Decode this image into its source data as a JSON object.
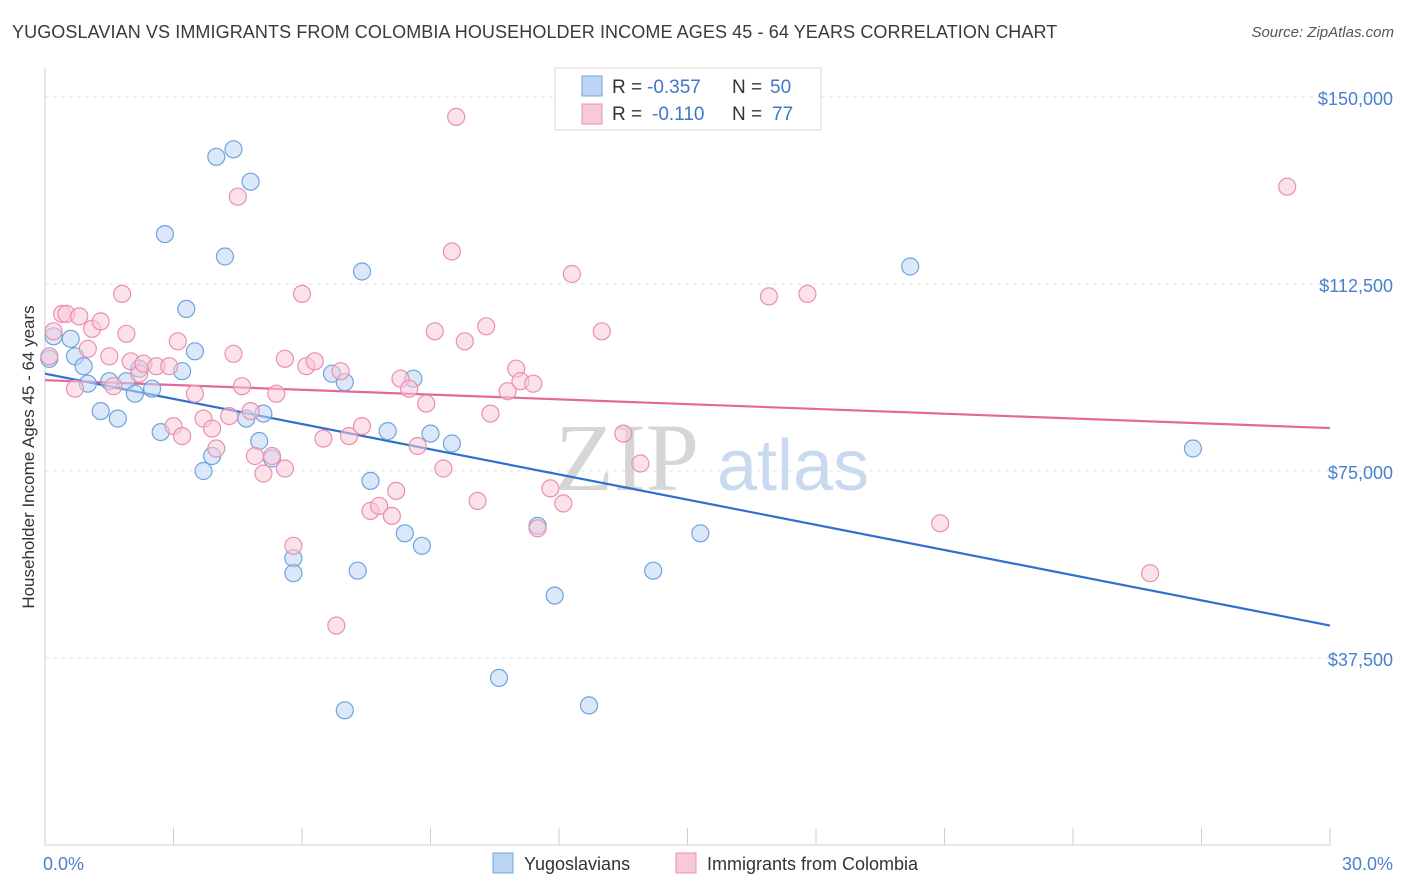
{
  "header": {
    "title": "YUGOSLAVIAN VS IMMIGRANTS FROM COLOMBIA HOUSEHOLDER INCOME AGES 45 - 64 YEARS CORRELATION CHART",
    "source": "Source: ZipAtlas.com"
  },
  "watermark": {
    "zip": "ZIP",
    "atlas": "atlas"
  },
  "legend": {
    "rows": [
      {
        "r_label": "R =",
        "r_value": "-0.357",
        "n_label": "N =",
        "n_value": "50"
      },
      {
        "r_label": "R =",
        "r_value": "-0.110",
        "n_label": "N =",
        "n_value": "77"
      }
    ]
  },
  "chart_data": {
    "type": "scatter",
    "ylabel": "Householder Income Ages 45 - 64 years",
    "xlim": [
      0,
      30
    ],
    "ylim": [
      0,
      155000
    ],
    "x_tick_labels": [
      "0.0%",
      "30.0%"
    ],
    "y_ticks": [
      {
        "value": 37500,
        "label": "$37,500"
      },
      {
        "value": 75000,
        "label": "$75,000"
      },
      {
        "value": 112500,
        "label": "$112,500"
      },
      {
        "value": 150000,
        "label": "$150,000"
      }
    ],
    "grid": true,
    "legend_position": "top-center",
    "series": [
      {
        "name": "Yugoslavians",
        "color": "#6fa3e0",
        "fill": "#bcd5f4",
        "trend": {
          "x": [
            0,
            30
          ],
          "y": [
            94500,
            44000
          ]
        },
        "points": [
          [
            0.2,
            102000
          ],
          [
            0.6,
            101500
          ],
          [
            0.7,
            98000
          ],
          [
            0.9,
            96000
          ],
          [
            1.0,
            92500
          ],
          [
            1.3,
            87000
          ],
          [
            1.5,
            93000
          ],
          [
            1.7,
            85500
          ],
          [
            1.9,
            93000
          ],
          [
            2.1,
            90500
          ],
          [
            2.2,
            95500
          ],
          [
            2.5,
            91500
          ],
          [
            2.7,
            82800
          ],
          [
            2.8,
            122500
          ],
          [
            3.2,
            95000
          ],
          [
            3.3,
            107500
          ],
          [
            3.5,
            99000
          ],
          [
            3.7,
            75000
          ],
          [
            3.9,
            78000
          ],
          [
            4.0,
            138000
          ],
          [
            4.2,
            118000
          ],
          [
            4.4,
            139500
          ],
          [
            4.7,
            85500
          ],
          [
            4.8,
            133000
          ],
          [
            5.0,
            81000
          ],
          [
            5.1,
            86500
          ],
          [
            5.3,
            77500
          ],
          [
            5.8,
            57500
          ],
          [
            5.8,
            54500
          ],
          [
            6.7,
            94500
          ],
          [
            7.0,
            27000
          ],
          [
            7.0,
            92800
          ],
          [
            7.3,
            55000
          ],
          [
            7.4,
            115000
          ],
          [
            7.6,
            73000
          ],
          [
            8.0,
            83000
          ],
          [
            8.4,
            62500
          ],
          [
            8.6,
            93500
          ],
          [
            8.8,
            60000
          ],
          [
            9.0,
            82500
          ],
          [
            9.5,
            80500
          ],
          [
            10.6,
            33500
          ],
          [
            11.5,
            64000
          ],
          [
            11.9,
            50000
          ],
          [
            12.7,
            28000
          ],
          [
            14.2,
            55000
          ],
          [
            15.3,
            62500
          ],
          [
            20.2,
            116000
          ],
          [
            26.8,
            79500
          ],
          [
            0.1,
            97500
          ]
        ]
      },
      {
        "name": "Immigrants from Colombia",
        "color": "#eb8fb0",
        "fill": "#f8c9d9",
        "trend": {
          "x": [
            0,
            30
          ],
          "y": [
            93200,
            83600
          ]
        },
        "points": [
          [
            0.1,
            98000
          ],
          [
            0.2,
            103000
          ],
          [
            0.4,
            106500
          ],
          [
            0.5,
            106500
          ],
          [
            0.7,
            91500
          ],
          [
            0.8,
            106000
          ],
          [
            1.0,
            99500
          ],
          [
            1.1,
            103500
          ],
          [
            1.3,
            105000
          ],
          [
            1.5,
            98000
          ],
          [
            1.8,
            110500
          ],
          [
            1.9,
            102500
          ],
          [
            2.0,
            97000
          ],
          [
            2.2,
            94500
          ],
          [
            2.3,
            96500
          ],
          [
            2.6,
            96000
          ],
          [
            2.9,
            96000
          ],
          [
            3.0,
            84000
          ],
          [
            3.2,
            82000
          ],
          [
            3.5,
            90500
          ],
          [
            3.7,
            85500
          ],
          [
            3.9,
            83500
          ],
          [
            4.0,
            79500
          ],
          [
            4.3,
            86000
          ],
          [
            4.4,
            98500
          ],
          [
            4.5,
            130000
          ],
          [
            4.6,
            92000
          ],
          [
            4.8,
            87000
          ],
          [
            4.9,
            78000
          ],
          [
            5.1,
            74500
          ],
          [
            5.3,
            78000
          ],
          [
            5.4,
            90500
          ],
          [
            5.6,
            75500
          ],
          [
            5.8,
            60000
          ],
          [
            6.0,
            110500
          ],
          [
            6.1,
            96000
          ],
          [
            6.3,
            97000
          ],
          [
            6.5,
            81500
          ],
          [
            6.8,
            44000
          ],
          [
            6.9,
            95000
          ],
          [
            7.1,
            82000
          ],
          [
            7.4,
            84000
          ],
          [
            7.6,
            67000
          ],
          [
            7.8,
            68000
          ],
          [
            8.1,
            66000
          ],
          [
            8.3,
            93500
          ],
          [
            8.5,
            91500
          ],
          [
            8.7,
            80000
          ],
          [
            8.9,
            88500
          ],
          [
            9.1,
            103000
          ],
          [
            9.3,
            75500
          ],
          [
            9.5,
            119000
          ],
          [
            9.6,
            146000
          ],
          [
            9.8,
            101000
          ],
          [
            10.1,
            69000
          ],
          [
            10.3,
            104000
          ],
          [
            10.4,
            86500
          ],
          [
            10.8,
            91000
          ],
          [
            11.0,
            95500
          ],
          [
            11.1,
            93000
          ],
          [
            11.4,
            92500
          ],
          [
            11.5,
            63500
          ],
          [
            11.8,
            71500
          ],
          [
            12.1,
            68500
          ],
          [
            12.3,
            114500
          ],
          [
            13.0,
            103000
          ],
          [
            13.5,
            82500
          ],
          [
            13.9,
            76500
          ],
          [
            16.9,
            110000
          ],
          [
            17.8,
            110500
          ],
          [
            20.9,
            64500
          ],
          [
            25.8,
            54500
          ],
          [
            29.0,
            132000
          ],
          [
            3.1,
            101000
          ],
          [
            5.6,
            97500
          ],
          [
            8.2,
            71000
          ],
          [
            1.6,
            92000
          ]
        ]
      }
    ]
  }
}
